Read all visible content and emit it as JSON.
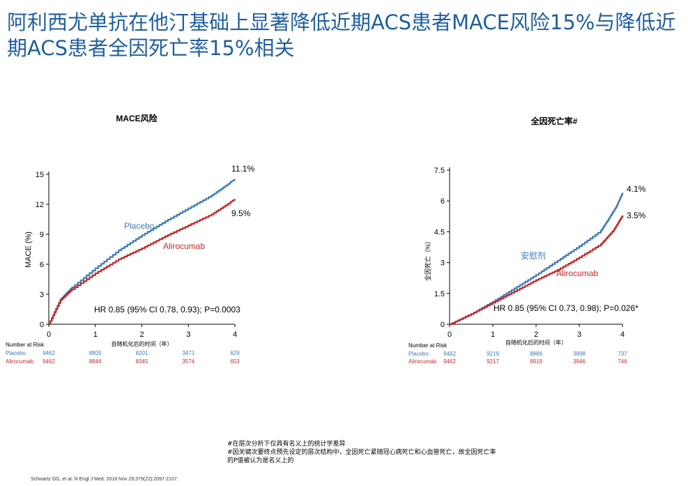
{
  "page": {
    "title": "阿利西尤单抗在他汀基础上显著降低近期ACS患者MACE风险15%与降低近期ACS患者全因死亡率15%相关",
    "footnotes": [
      "#在层次分析下仅具有名义上的统计学差异",
      "#因关键次要终点预先设定的层次结构中，全因死亡紧随冠心病死亡和心血管死亡，故全因死亡率的P值被认为是名义上的"
    ],
    "citation": "Schwartz GG, et al. N Engl J Med. 2018 Nov 29;379(22):2097-2107."
  },
  "colors": {
    "placebo": "#3f7bb3",
    "alirocumab": "#c0282a",
    "title": "#1f5f9e"
  },
  "chart_data": [
    {
      "type": "line",
      "title": "MACE风险",
      "xlabel": "自随机化后的时间（年）",
      "ylabel": "MACE (%)",
      "xlim": [
        0,
        4
      ],
      "ylim": [
        0,
        15
      ],
      "x_ticks": [
        "0",
        "1",
        "2",
        "3",
        "4"
      ],
      "y_ticks": [
        "0",
        "3",
        "6",
        "9",
        "12",
        "15"
      ],
      "hr_text": "HR 0.85 (95% CI 0.78, 0.93); P=0.0003",
      "series": [
        {
          "name": "Placebo",
          "end_label": "11.1%",
          "color": "#3f7bb3",
          "x": [
            0,
            0.25,
            0.5,
            1,
            1.5,
            2,
            2.5,
            3,
            3.5,
            3.9,
            4.0
          ],
          "y": [
            0,
            2.5,
            3.7,
            5.6,
            7.4,
            8.9,
            10.3,
            11.6,
            12.9,
            14.2,
            14.5
          ]
        },
        {
          "name": "Alirocumab",
          "end_label": "9.5%",
          "color": "#c0282a",
          "x": [
            0,
            0.25,
            0.5,
            1,
            1.5,
            2,
            2.5,
            3,
            3.5,
            3.9,
            4.0
          ],
          "y": [
            0,
            2.4,
            3.5,
            5.1,
            6.5,
            7.6,
            8.8,
            9.9,
            11.0,
            12.2,
            12.5
          ]
        }
      ],
      "risk_table": {
        "header": "Number at Risk",
        "rows": [
          {
            "label": "Placebo",
            "values": [
              "9462",
              "8805",
              "8201",
              "3471",
              "629"
            ]
          },
          {
            "label": "Alirocumab",
            "values": [
              "9462",
              "8846",
              "8345",
              "3574",
              "653"
            ]
          }
        ]
      }
    },
    {
      "type": "line",
      "title": "全因死亡率#",
      "xlabel": "自随机化后的时间（年）",
      "ylabel": "全因死亡（%）",
      "xlim": [
        0,
        4
      ],
      "ylim": [
        0,
        7.5
      ],
      "x_ticks": [
        "0",
        "1",
        "2",
        "3",
        "4"
      ],
      "y_ticks": [
        "0",
        "1.5",
        "3",
        "4.5",
        "6",
        "7.5"
      ],
      "hr_text": "HR 0.85 (95% CI 0.73, 0.98); P=0.026*",
      "series": [
        {
          "name": "安慰剂",
          "end_label": "4.1%",
          "color": "#3f7bb3",
          "x": [
            0,
            0.5,
            1,
            1.5,
            2,
            2.5,
            3,
            3.5,
            3.7,
            3.85,
            4.0
          ],
          "y": [
            0,
            0.5,
            1.1,
            1.75,
            2.4,
            3.1,
            3.8,
            4.55,
            5.2,
            5.7,
            6.4
          ]
        },
        {
          "name": "Alirocumab",
          "end_label": "3.5%",
          "color": "#c0282a",
          "x": [
            0,
            0.5,
            1,
            1.5,
            2,
            2.5,
            3,
            3.5,
            3.8,
            4.0
          ],
          "y": [
            0,
            0.5,
            1.05,
            1.6,
            2.15,
            2.65,
            3.25,
            3.9,
            4.6,
            5.3
          ]
        }
      ],
      "risk_table": {
        "header": "Number at Risk",
        "rows": [
          {
            "label": "Placebo",
            "values": [
              "9462",
              "9219",
              "8888",
              "3898",
              "737"
            ]
          },
          {
            "label": "Alirocumab",
            "values": [
              "9462",
              "9217",
              "8919",
              "3946",
              "746"
            ]
          }
        ]
      }
    }
  ]
}
